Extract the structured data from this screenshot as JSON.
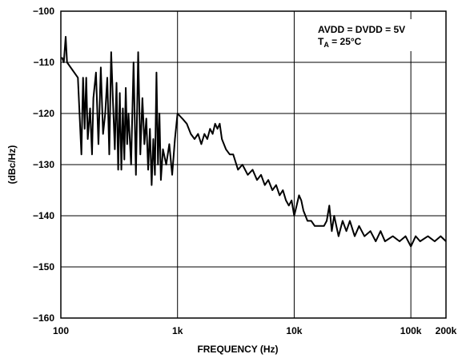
{
  "chart_data": {
    "type": "line",
    "xlabel": "FREQUENCY (Hz)",
    "ylabel": "(dBc/Hz)",
    "annotations": [
      {
        "text": "AVDD = DVDD = 5V"
      },
      {
        "parts": [
          "T",
          "A",
          " = 25°C"
        ]
      }
    ],
    "xscale": "log",
    "grid": true,
    "color": "#000000",
    "xlim": [
      100,
      200000
    ],
    "ylim": [
      -160,
      -100
    ],
    "xticks": [
      100,
      {
        "value": 1000,
        "label": "1k"
      },
      {
        "value": 10000,
        "label": "10k"
      },
      {
        "value": 100000,
        "label": "100k"
      },
      {
        "value": 200000,
        "label": "200k"
      }
    ],
    "yticks": [
      {
        "value": -160,
        "label": "−160"
      },
      {
        "value": -150,
        "label": "−150"
      },
      {
        "value": -140,
        "label": "−140"
      },
      {
        "value": -130,
        "label": "−130"
      },
      {
        "value": -120,
        "label": "−120"
      },
      {
        "value": -110,
        "label": "−110"
      },
      {
        "value": -100,
        "label": "−100"
      }
    ],
    "x": [
      102,
      106,
      110,
      113,
      140,
      150,
      155,
      160,
      165,
      170,
      178,
      185,
      190,
      200,
      210,
      220,
      230,
      240,
      250,
      260,
      270,
      280,
      290,
      300,
      310,
      320,
      330,
      340,
      350,
      360,
      370,
      380,
      400,
      420,
      440,
      460,
      480,
      500,
      520,
      540,
      560,
      580,
      600,
      620,
      640,
      660,
      680,
      700,
      720,
      750,
      800,
      850,
      900,
      950,
      1000,
      1100,
      1200,
      1300,
      1400,
      1500,
      1600,
      1700,
      1800,
      1900,
      2000,
      2100,
      2200,
      2300,
      2400,
      2600,
      2800,
      3000,
      3300,
      3600,
      4000,
      4400,
      4800,
      5200,
      5600,
      6000,
      6500,
      7000,
      7500,
      8000,
      8500,
      9000,
      9500,
      10000,
      10500,
      11000,
      11500,
      12000,
      13000,
      14000,
      15000,
      16000,
      17000,
      18000,
      19000,
      20000,
      21000,
      22000,
      24000,
      26000,
      28000,
      30000,
      33000,
      36000,
      40000,
      45000,
      50000,
      55000,
      60000,
      70000,
      80000,
      90000,
      100000,
      110000,
      120000,
      140000,
      160000,
      180000,
      200000
    ],
    "values": [
      -109,
      -110,
      -105,
      -110,
      -113,
      -128,
      -113,
      -123,
      -113,
      -125,
      -119,
      -128,
      -117,
      -112,
      -126,
      -111,
      -124,
      -120,
      -113,
      -128,
      -108,
      -118,
      -127,
      -114,
      -131,
      -116,
      -131,
      -119,
      -129,
      -115,
      -126,
      -120,
      -130,
      -110,
      -132,
      -108,
      -128,
      -117,
      -126,
      -121,
      -131,
      -123,
      -134,
      -125,
      -132,
      -112,
      -130,
      -120,
      -133,
      -127,
      -130,
      -126,
      -132,
      -125,
      -120,
      -121,
      -122,
      -124,
      -125,
      -124,
      -126,
      -124,
      -125,
      -123,
      -124,
      -122,
      -123,
      -122,
      -125,
      -127,
      -128,
      -128,
      -131,
      -130,
      -132,
      -131,
      -133,
      -132,
      -134,
      -133,
      -135,
      -134,
      -136,
      -135,
      -137,
      -138,
      -137,
      -140,
      -138,
      -136,
      -137,
      -139,
      -141,
      -141,
      -142,
      -142,
      -142,
      -142,
      -141,
      -138,
      -143,
      -140,
      -144,
      -141,
      -143,
      -141,
      -144,
      -142,
      -144,
      -143,
      -145,
      -143,
      -145,
      -144,
      -145,
      -144,
      -146,
      -144,
      -145,
      -144,
      -145,
      -144,
      -145
    ]
  }
}
